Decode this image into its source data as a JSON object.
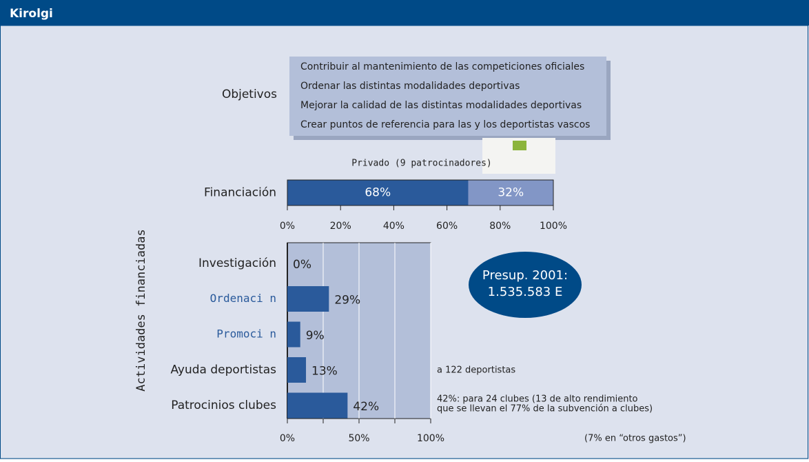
{
  "header": {
    "title": "Kirolgi"
  },
  "objectives": {
    "label": "Objetivos",
    "items": [
      "Contribuir al mantenimiento de las competiciones oficiales",
      "Ordenar las distintas modalidades deportivas",
      "Mejorar la calidad de las distintas modalidades deportivas",
      "Crear puntos de referencia para las y los deportistas vascos"
    ]
  },
  "chart_data": [
    {
      "type": "stacked_bar",
      "categories": [
        "Financiación"
      ],
      "annotation": "Privado (9 patrocinadores)",
      "series": [
        {
          "color": "#2a5a9b",
          "values": [
            68
          ],
          "value_labels": [
            "68%"
          ]
        },
        {
          "color": "#8296c6",
          "values": [
            32
          ],
          "value_labels": [
            "32%"
          ]
        }
      ],
      "xlim": [
        0,
        100
      ],
      "xticks": [
        {
          "value": 0,
          "label": "0%"
        },
        {
          "value": 20,
          "label": "20%"
        },
        {
          "value": 40,
          "label": "40%"
        },
        {
          "value": 60,
          "label": "60%"
        },
        {
          "value": 80,
          "label": "80%"
        },
        {
          "value": 100,
          "label": "100%"
        }
      ]
    },
    {
      "type": "bar",
      "ylabel": "Actividades financiadas",
      "color": "#2a5a9b",
      "categories": [
        "Investigación",
        "Ordenaci n",
        "Promoci n",
        "Ayuda deportistas",
        "Patrocinios clubes"
      ],
      "values": [
        0,
        29,
        9,
        13,
        42
      ],
      "value_labels": [
        "0%",
        "29%",
        "9%",
        "13%",
        "42%"
      ],
      "xlim": [
        0,
        100
      ],
      "xticks": [
        {
          "value": 0,
          "label": "0%"
        },
        {
          "value": 50,
          "label": "50%"
        },
        {
          "value": 100,
          "label": "100%"
        }
      ],
      "minor_xticks": [
        25,
        75
      ],
      "grid": true,
      "callout": [
        "Presup. 2001:",
        "1.535.583 E"
      ],
      "notes": [
        "a 122 deportistas",
        "42%: para 24 clubes (13 de alto rendimiento",
        "que se llevan el 77% de la subvención a clubes)",
        "(7% en “otros gastos”)"
      ]
    }
  ]
}
